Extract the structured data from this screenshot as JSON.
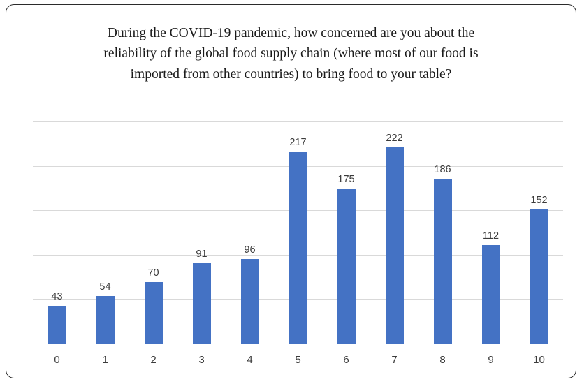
{
  "chart_data": {
    "type": "bar",
    "title": "During the COVID-19 pandemic, how concerned are you about the reliability of the global food supply chain (where most of our food is imported from other countries) to bring food to your table?",
    "categories": [
      "0",
      "1",
      "2",
      "3",
      "4",
      "5",
      "6",
      "7",
      "8",
      "9",
      "10"
    ],
    "values": [
      43,
      54,
      70,
      91,
      96,
      217,
      175,
      222,
      186,
      112,
      152
    ],
    "xlabel": "",
    "ylabel": "",
    "ylim": [
      0,
      250
    ],
    "gridline_step": 50,
    "grid": true,
    "legend": "none",
    "data_labels": true
  },
  "colors": {
    "bar": "#4472C4",
    "gridline": "#d9d9d9",
    "axis_line": "#d9d9d9",
    "label_text": "#3b3b3b",
    "title_text": "#1a1a1a",
    "frame_border": "#2b2b2b"
  }
}
